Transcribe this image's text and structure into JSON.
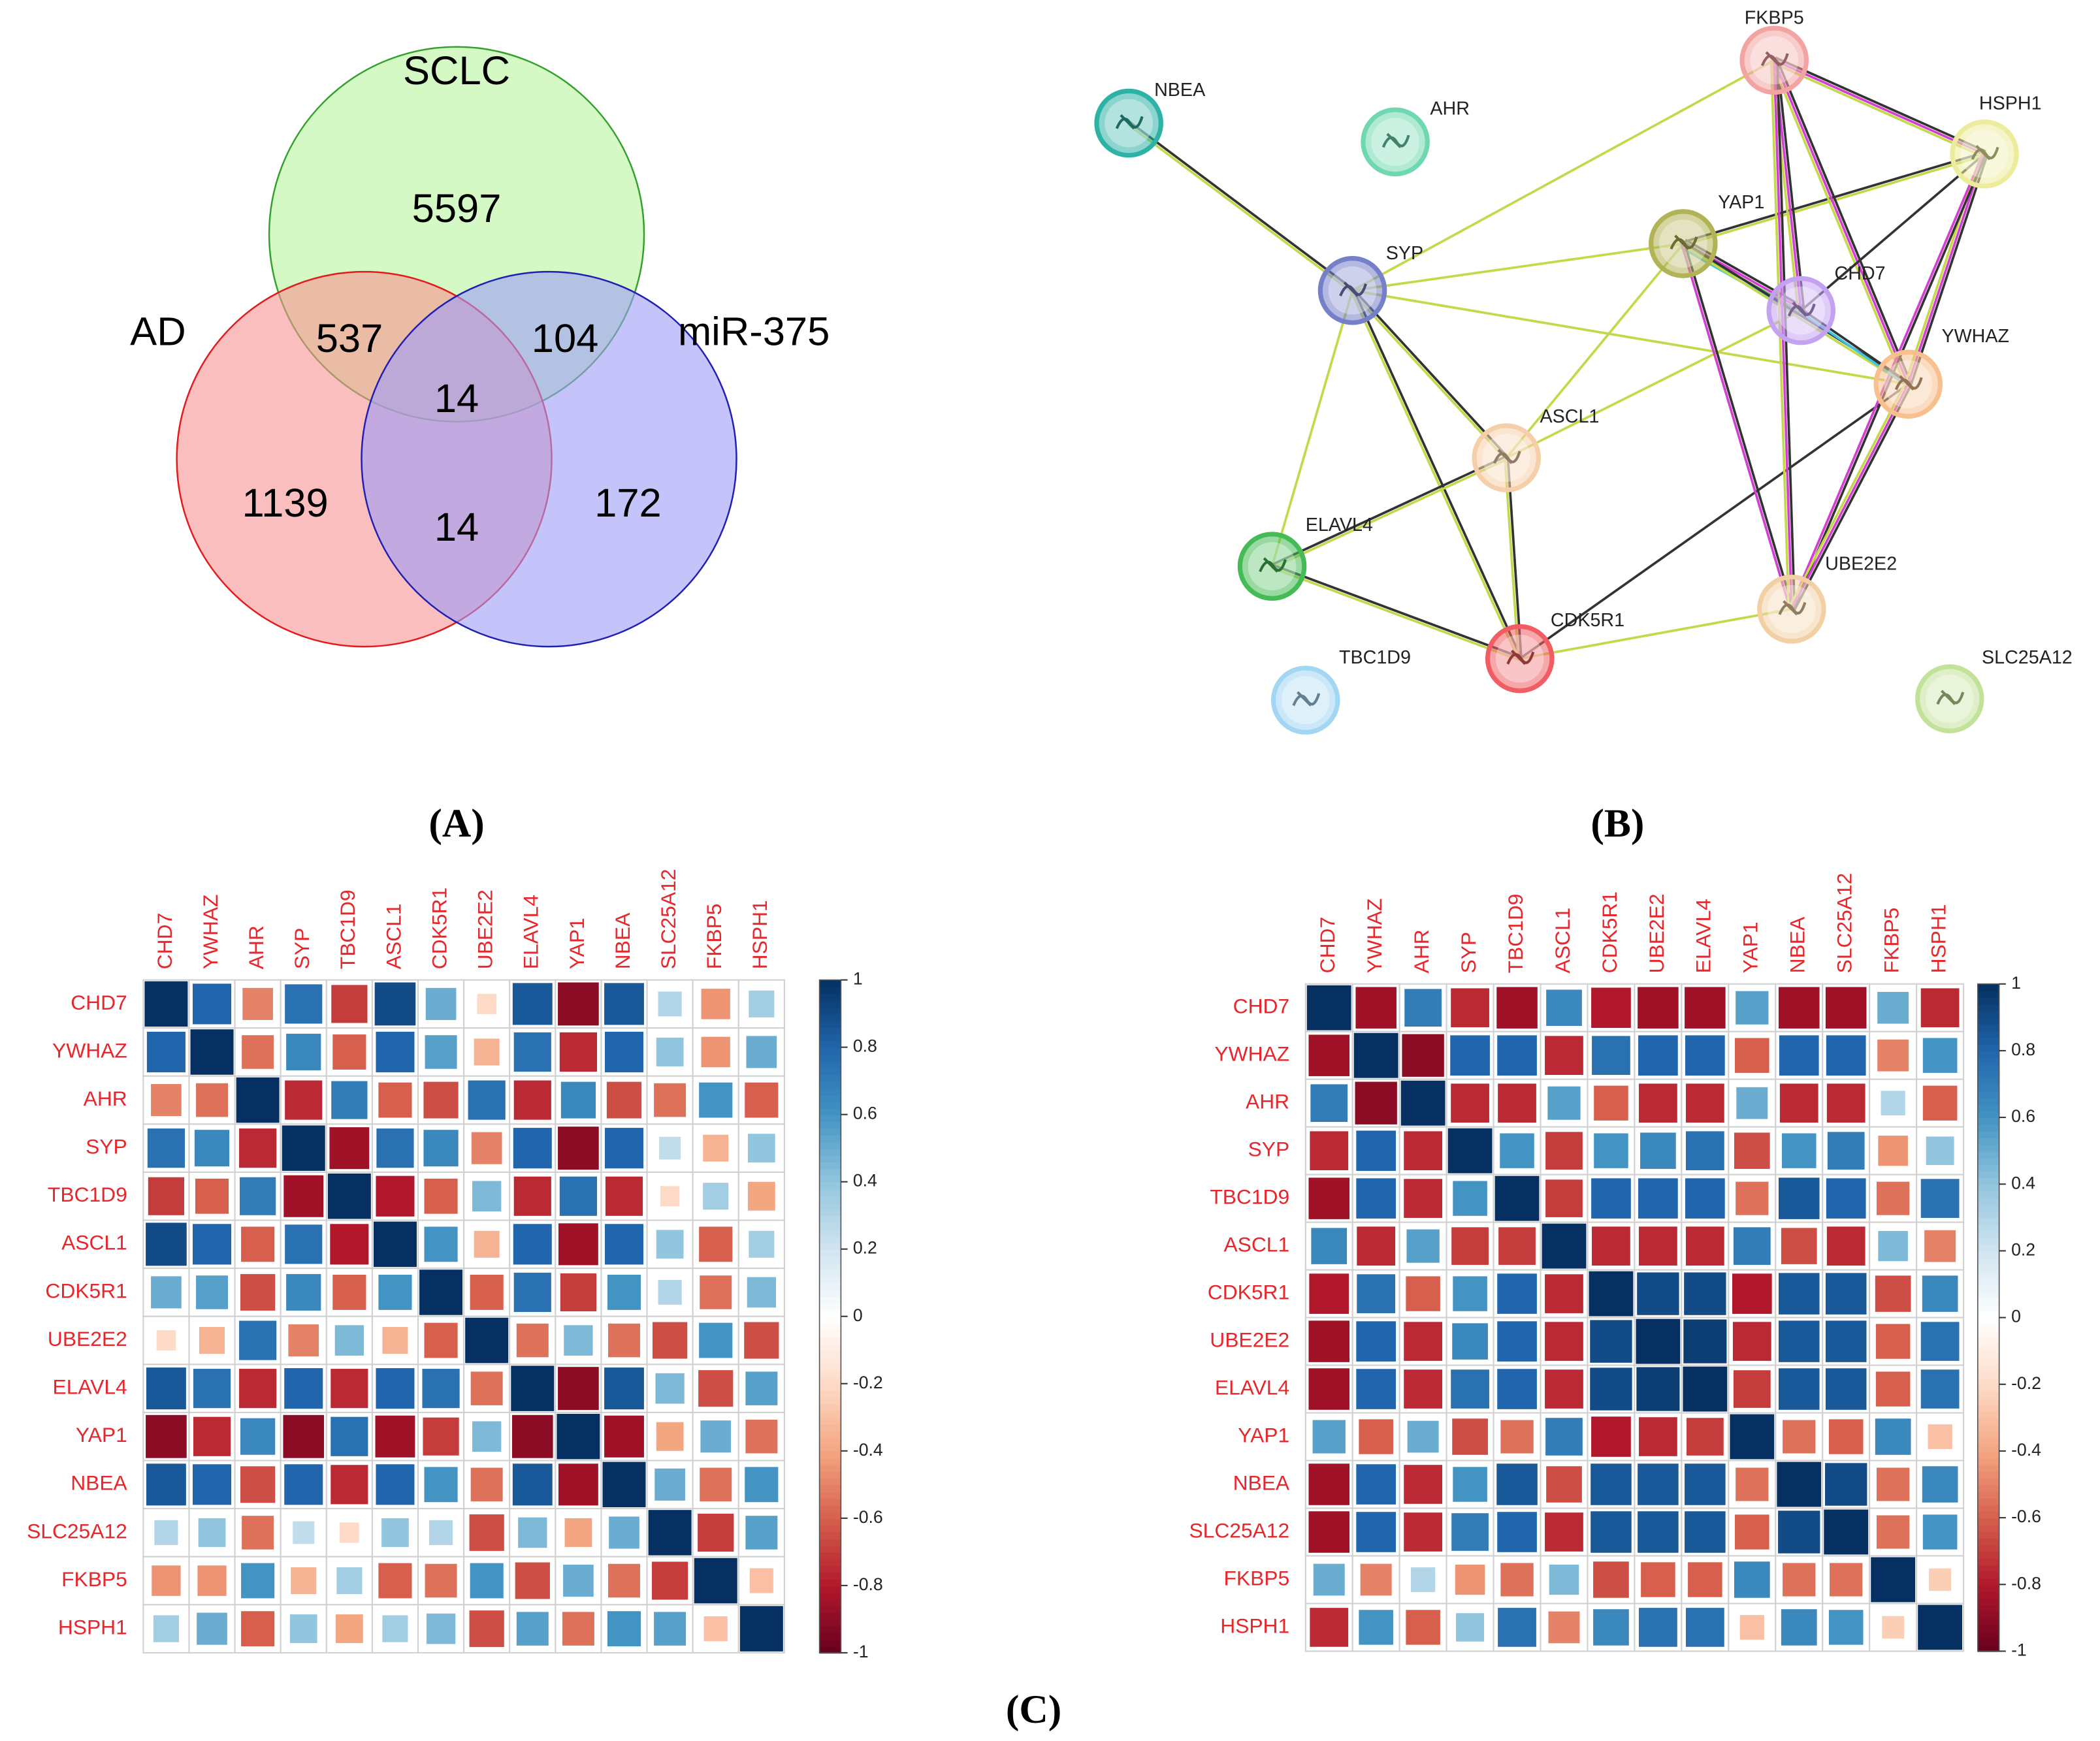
{
  "panel_labels": [
    "(A)",
    "(B)",
    "(C)"
  ],
  "chart_data": [
    {
      "type": "venn",
      "sets": [
        {
          "name": "SCLC",
          "color": "#b8f59c",
          "edge": "#33a02c"
        },
        {
          "name": "AD",
          "color": "#f99393",
          "edge": "#e31a1c"
        },
        {
          "name": "miR-375",
          "color": "#9c9cf8",
          "edge": "#1f1fb4"
        }
      ],
      "regions": [
        {
          "sets": [
            "SCLC"
          ],
          "value": 5597
        },
        {
          "sets": [
            "SCLC",
            "AD"
          ],
          "value": 537
        },
        {
          "sets": [
            "SCLC",
            "miR-375"
          ],
          "value": 104
        },
        {
          "sets": [
            "SCLC",
            "AD",
            "miR-375"
          ],
          "value": 14
        },
        {
          "sets": [
            "AD"
          ],
          "value": 1139
        },
        {
          "sets": [
            "AD",
            "miR-375"
          ],
          "value": 14
        },
        {
          "sets": [
            "miR-375"
          ],
          "value": 172
        }
      ]
    },
    {
      "type": "network",
      "nodes": [
        {
          "label": "NBEA",
          "color": "#2db3a6"
        },
        {
          "label": "AHR",
          "color": "#6fd8b0"
        },
        {
          "label": "FKBP5",
          "color": "#f4a3a3"
        },
        {
          "label": "HSPH1",
          "color": "#ecec9c"
        },
        {
          "label": "SYP",
          "color": "#7580c8"
        },
        {
          "label": "YAP1",
          "color": "#b2b256"
        },
        {
          "label": "CHD7",
          "color": "#c4a2f2"
        },
        {
          "label": "YWHAZ",
          "color": "#f7c08e"
        },
        {
          "label": "ASCL1",
          "color": "#f5cfaa"
        },
        {
          "label": "ELAVL4",
          "color": "#45bb55"
        },
        {
          "label": "UBE2E2",
          "color": "#f2cfa4"
        },
        {
          "label": "CDK5R1",
          "color": "#f05d63"
        },
        {
          "label": "TBC1D9",
          "color": "#a3d6f2"
        },
        {
          "label": "SLC25A12",
          "color": "#c2e29a"
        }
      ],
      "edges": [
        {
          "source": "NBEA",
          "target": "SYP",
          "colors": [
            "#333333",
            "#c4d84a"
          ]
        },
        {
          "source": "SYP",
          "target": "FKBP5",
          "colors": [
            "#c4d84a"
          ]
        },
        {
          "source": "SYP",
          "target": "YAP1",
          "colors": [
            "#c4d84a"
          ]
        },
        {
          "source": "SYP",
          "target": "YWHAZ",
          "colors": [
            "#c4d84a"
          ]
        },
        {
          "source": "SYP",
          "target": "ASCL1",
          "colors": [
            "#333333",
            "#c4d84a"
          ]
        },
        {
          "source": "SYP",
          "target": "ELAVL4",
          "colors": [
            "#c4d84a"
          ]
        },
        {
          "source": "SYP",
          "target": "CDK5R1",
          "colors": [
            "#333333",
            "#c4d84a"
          ]
        },
        {
          "source": "ASCL1",
          "target": "YAP1",
          "colors": [
            "#c4d84a"
          ]
        },
        {
          "source": "ASCL1",
          "target": "CHD7",
          "colors": [
            "#c4d84a"
          ]
        },
        {
          "source": "ELAVL4",
          "target": "ASCL1",
          "colors": [
            "#333333",
            "#c4d84a"
          ]
        },
        {
          "source": "ASCL1",
          "target": "CDK5R1",
          "colors": [
            "#333333",
            "#c4d84a"
          ]
        },
        {
          "source": "ELAVL4",
          "target": "CDK5R1",
          "colors": [
            "#333333",
            "#c4d84a"
          ]
        },
        {
          "source": "CDK5R1",
          "target": "UBE2E2",
          "colors": [
            "#c4d84a"
          ]
        },
        {
          "source": "CDK5R1",
          "target": "YWHAZ",
          "colors": [
            "#333333"
          ]
        },
        {
          "source": "YAP1",
          "target": "HSPH1",
          "colors": [
            "#333333",
            "#c4d84a"
          ]
        },
        {
          "source": "YAP1",
          "target": "CHD7",
          "colors": [
            "#333333",
            "#d23fd2",
            "#3fb13f",
            "#3fc4e0"
          ]
        },
        {
          "source": "YAP1",
          "target": "YWHAZ",
          "colors": [
            "#333333",
            "#c4d84a"
          ]
        },
        {
          "source": "YAP1",
          "target": "UBE2E2",
          "colors": [
            "#333333",
            "#d23fd2"
          ]
        },
        {
          "source": "FKBP5",
          "target": "HSPH1",
          "colors": [
            "#333333",
            "#d23fd2",
            "#c4d84a"
          ]
        },
        {
          "source": "FKBP5",
          "target": "CHD7",
          "colors": [
            "#333333",
            "#d23fd2",
            "#c4d84a"
          ]
        },
        {
          "source": "FKBP5",
          "target": "YWHAZ",
          "colors": [
            "#333333",
            "#d23fd2",
            "#c4d84a"
          ]
        },
        {
          "source": "FKBP5",
          "target": "UBE2E2",
          "colors": [
            "#333333",
            "#d23fd2",
            "#c4d84a"
          ]
        },
        {
          "source": "HSPH1",
          "target": "CHD7",
          "colors": [
            "#333333"
          ]
        },
        {
          "source": "HSPH1",
          "target": "YWHAZ",
          "colors": [
            "#333333",
            "#d23fd2",
            "#c4d84a"
          ]
        },
        {
          "source": "HSPH1",
          "target": "UBE2E2",
          "colors": [
            "#333333",
            "#d23fd2"
          ]
        },
        {
          "source": "CHD7",
          "target": "YWHAZ",
          "colors": [
            "#333333",
            "#3fc4e0"
          ]
        },
        {
          "source": "YWHAZ",
          "target": "UBE2E2",
          "colors": [
            "#333333",
            "#d23fd2",
            "#c4d84a"
          ]
        }
      ]
    },
    {
      "type": "corrplot",
      "labels": [
        "CHD7",
        "YWHAZ",
        "AHR",
        "SYP",
        "TBC1D9",
        "ASCL1",
        "CDK5R1",
        "UBE2E2",
        "ELAVL4",
        "YAP1",
        "NBEA",
        "SLC25A12",
        "FKBP5",
        "HSPH1"
      ],
      "label_color": "#e8262b",
      "zlim": [
        -1,
        1
      ],
      "zticks": [
        1,
        0.8,
        0.6,
        0.4,
        0.2,
        0,
        -0.2,
        -0.4,
        -0.6,
        -0.8,
        -1
      ],
      "colorscale": [
        "#67001f",
        "#b2182b",
        "#d6604d",
        "#f4a582",
        "#fddbc7",
        "#ffffff",
        "#d1e5f0",
        "#92c5de",
        "#4393c3",
        "#2166ac",
        "#053061"
      ],
      "values": [
        [
          1,
          0.8,
          -0.5,
          0.75,
          -0.7,
          0.9,
          0.5,
          -0.2,
          0.85,
          -0.9,
          0.85,
          0.3,
          -0.45,
          0.35
        ],
        [
          0.8,
          1,
          -0.55,
          0.65,
          -0.6,
          0.8,
          0.55,
          -0.35,
          0.75,
          -0.75,
          0.8,
          0.4,
          -0.45,
          0.5
        ],
        [
          -0.5,
          -0.55,
          1,
          -0.75,
          0.7,
          -0.6,
          -0.65,
          0.75,
          -0.75,
          0.65,
          -0.65,
          -0.55,
          0.6,
          -0.6
        ],
        [
          0.75,
          0.65,
          -0.75,
          1,
          -0.85,
          0.75,
          0.65,
          -0.5,
          0.8,
          -0.9,
          0.8,
          0.25,
          -0.35,
          0.4
        ],
        [
          -0.7,
          -0.6,
          0.7,
          -0.85,
          1,
          -0.8,
          -0.6,
          0.45,
          -0.75,
          0.75,
          -0.75,
          -0.2,
          0.35,
          -0.4
        ],
        [
          0.9,
          0.8,
          -0.6,
          0.75,
          -0.8,
          1,
          0.6,
          -0.35,
          0.8,
          -0.85,
          0.8,
          0.4,
          -0.6,
          0.35
        ],
        [
          0.5,
          0.55,
          -0.65,
          0.65,
          -0.6,
          0.6,
          1,
          -0.6,
          0.75,
          -0.7,
          0.6,
          0.3,
          -0.55,
          0.45
        ],
        [
          -0.2,
          -0.35,
          0.75,
          -0.5,
          0.45,
          -0.35,
          -0.6,
          1,
          -0.55,
          0.45,
          -0.55,
          -0.65,
          0.6,
          -0.65
        ],
        [
          0.85,
          0.75,
          -0.75,
          0.8,
          -0.75,
          0.8,
          0.75,
          -0.55,
          1,
          -0.9,
          0.85,
          0.45,
          -0.65,
          0.55
        ],
        [
          -0.9,
          -0.75,
          0.65,
          -0.9,
          0.75,
          -0.85,
          -0.7,
          0.45,
          -0.9,
          1,
          -0.85,
          -0.4,
          0.5,
          -0.55
        ],
        [
          0.85,
          0.8,
          -0.65,
          0.8,
          -0.75,
          0.8,
          0.6,
          -0.55,
          0.85,
          -0.85,
          1,
          0.5,
          -0.55,
          0.6
        ],
        [
          0.3,
          0.4,
          -0.55,
          0.25,
          -0.2,
          0.4,
          0.3,
          -0.65,
          0.45,
          -0.4,
          0.5,
          1,
          -0.7,
          0.55
        ],
        [
          -0.45,
          -0.45,
          0.6,
          -0.35,
          0.35,
          -0.6,
          -0.55,
          0.6,
          -0.65,
          0.5,
          -0.55,
          -0.7,
          1,
          -0.3
        ],
        [
          0.35,
          0.5,
          -0.6,
          0.4,
          -0.4,
          0.35,
          0.45,
          -0.65,
          0.55,
          -0.55,
          0.6,
          0.55,
          -0.3,
          1
        ]
      ]
    },
    {
      "type": "corrplot",
      "labels": [
        "CHD7",
        "YWHAZ",
        "AHR",
        "SYP",
        "TBC1D9",
        "ASCL1",
        "CDK5R1",
        "UBE2E2",
        "ELAVL4",
        "YAP1",
        "NBEA",
        "SLC25A12",
        "FKBP5",
        "HSPH1"
      ],
      "label_color": "#e8262b",
      "zlim": [
        -1,
        1
      ],
      "zticks": [
        1,
        0.8,
        0.6,
        0.4,
        0.2,
        0,
        -0.2,
        -0.4,
        -0.6,
        -0.8,
        -1
      ],
      "colorscale": [
        "#67001f",
        "#b2182b",
        "#d6604d",
        "#f4a582",
        "#fddbc7",
        "#ffffff",
        "#d1e5f0",
        "#92c5de",
        "#4393c3",
        "#2166ac",
        "#053061"
      ],
      "values": [
        [
          1,
          -0.85,
          0.7,
          -0.75,
          -0.85,
          0.65,
          -0.8,
          -0.85,
          -0.85,
          0.55,
          -0.85,
          -0.85,
          0.5,
          -0.75
        ],
        [
          -0.85,
          1,
          -0.9,
          0.8,
          0.8,
          -0.75,
          0.75,
          0.8,
          0.8,
          -0.6,
          0.8,
          0.8,
          -0.5,
          0.6
        ],
        [
          0.7,
          -0.9,
          1,
          -0.75,
          -0.75,
          0.55,
          -0.6,
          -0.75,
          -0.75,
          0.5,
          -0.75,
          -0.75,
          0.3,
          -0.6
        ],
        [
          -0.75,
          0.8,
          -0.75,
          1,
          0.6,
          -0.7,
          0.6,
          0.65,
          0.75,
          -0.65,
          0.6,
          0.7,
          -0.45,
          0.4
        ],
        [
          -0.85,
          0.8,
          -0.75,
          0.6,
          1,
          -0.7,
          0.8,
          0.8,
          0.8,
          -0.55,
          0.85,
          0.8,
          -0.55,
          0.75
        ],
        [
          0.65,
          -0.75,
          0.55,
          -0.7,
          -0.7,
          1,
          -0.75,
          -0.75,
          -0.75,
          0.7,
          -0.65,
          -0.75,
          0.45,
          -0.5
        ],
        [
          -0.8,
          0.75,
          -0.6,
          0.6,
          0.8,
          -0.75,
          1,
          0.9,
          0.9,
          -0.8,
          0.85,
          0.85,
          -0.65,
          0.65
        ],
        [
          -0.85,
          0.8,
          -0.75,
          0.65,
          0.8,
          -0.75,
          0.9,
          1,
          0.95,
          -0.75,
          0.85,
          0.85,
          -0.6,
          0.75
        ],
        [
          -0.85,
          0.8,
          -0.75,
          0.75,
          0.8,
          -0.75,
          0.9,
          0.95,
          1,
          -0.7,
          0.85,
          0.85,
          -0.6,
          0.75
        ],
        [
          0.55,
          -0.6,
          0.5,
          -0.65,
          -0.55,
          0.7,
          -0.8,
          -0.75,
          -0.7,
          1,
          -0.55,
          -0.6,
          0.65,
          -0.3
        ],
        [
          -0.85,
          0.8,
          -0.75,
          0.6,
          0.85,
          -0.65,
          0.85,
          0.85,
          0.85,
          -0.55,
          1,
          0.9,
          -0.55,
          0.65
        ],
        [
          -0.85,
          0.8,
          -0.75,
          0.7,
          0.8,
          -0.75,
          0.85,
          0.85,
          0.85,
          -0.6,
          0.9,
          1,
          -0.55,
          0.6
        ],
        [
          0.5,
          -0.5,
          0.3,
          -0.45,
          -0.55,
          0.45,
          -0.65,
          -0.6,
          -0.6,
          0.65,
          -0.55,
          -0.55,
          1,
          -0.25
        ],
        [
          -0.75,
          0.6,
          -0.6,
          0.4,
          0.75,
          -0.5,
          0.65,
          0.75,
          0.75,
          -0.3,
          0.65,
          0.6,
          -0.25,
          1
        ]
      ]
    }
  ]
}
